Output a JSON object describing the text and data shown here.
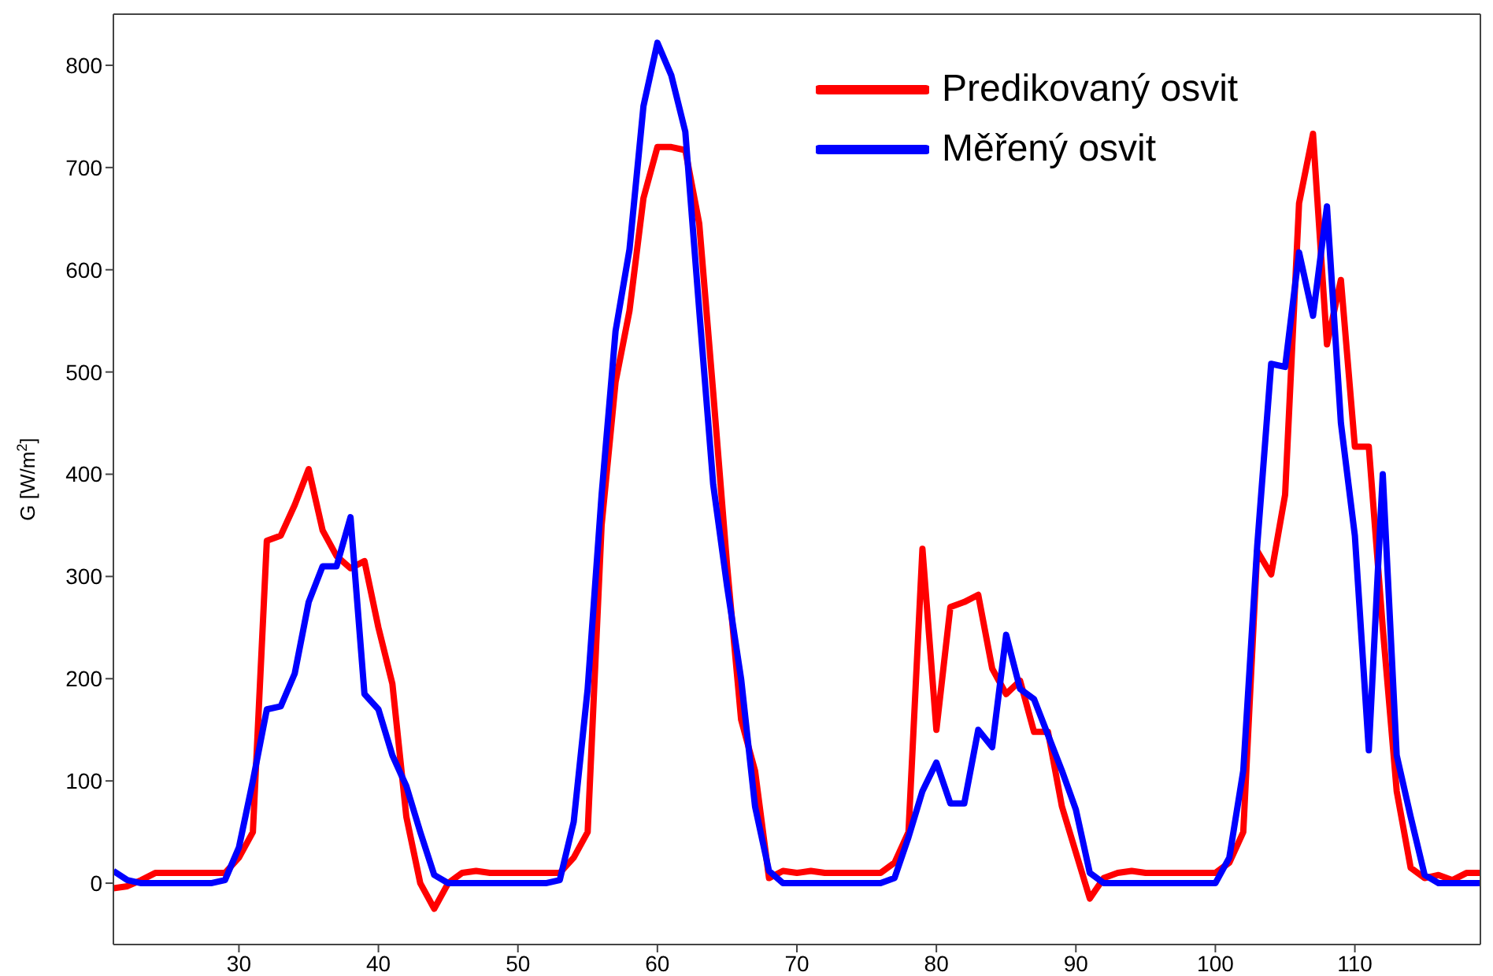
{
  "chart_data": {
    "type": "line",
    "ylabel": "G [W/m$^{2}$]",
    "xlim": [
      21,
      119
    ],
    "xticks": [
      30,
      40,
      50,
      60,
      70,
      80,
      90,
      100,
      110
    ],
    "ylim": [
      -60,
      850
    ],
    "yticks": [
      0,
      100,
      200,
      300,
      400,
      500,
      600,
      700,
      800
    ],
    "grid": false,
    "legend": "top right",
    "marker": "none",
    "line_style": "solid",
    "x": [
      21,
      22,
      23,
      24,
      25,
      26,
      27,
      28,
      29,
      30,
      31,
      32,
      33,
      34,
      35,
      36,
      37,
      38,
      39,
      40,
      41,
      42,
      43,
      44,
      45,
      46,
      47,
      48,
      49,
      50,
      51,
      52,
      53,
      54,
      55,
      56,
      57,
      58,
      59,
      60,
      61,
      62,
      63,
      64,
      65,
      66,
      67,
      68,
      69,
      70,
      71,
      72,
      73,
      74,
      75,
      76,
      77,
      78,
      79,
      80,
      81,
      82,
      83,
      84,
      85,
      86,
      87,
      88,
      89,
      90,
      91,
      92,
      93,
      94,
      95,
      96,
      97,
      98,
      99,
      100,
      101,
      102,
      103,
      104,
      105,
      106,
      107,
      108,
      109,
      110,
      111,
      112,
      113,
      114,
      115,
      116,
      117,
      118,
      119
    ],
    "series": [
      {
        "name": "Predikovaný osvit",
        "color": "#ff0000",
        "values": [
          -5,
          -3,
          3,
          10,
          10,
          10,
          10,
          10,
          10,
          25,
          50,
          335,
          340,
          370,
          405,
          345,
          320,
          308,
          315,
          250,
          195,
          65,
          0,
          -25,
          0,
          10,
          12,
          10,
          10,
          10,
          10,
          10,
          10,
          25,
          50,
          350,
          490,
          560,
          670,
          720,
          720,
          717,
          645,
          480,
          310,
          160,
          110,
          5,
          12,
          10,
          12,
          10,
          10,
          10,
          10,
          10,
          20,
          50,
          327,
          150,
          270,
          275,
          282,
          210,
          185,
          198,
          148,
          148,
          75,
          30,
          -15,
          5,
          10,
          12,
          10,
          10,
          10,
          10,
          10,
          10,
          20,
          50,
          325,
          302,
          380,
          665,
          733,
          527,
          590,
          427,
          427,
          250,
          90,
          15,
          5,
          8,
          3,
          10,
          10
        ]
      },
      {
        "name": "Měřený osvit",
        "color": "#0000ff",
        "values": [
          12,
          3,
          0,
          0,
          0,
          0,
          0,
          0,
          3,
          35,
          100,
          170,
          173,
          205,
          275,
          310,
          310,
          358,
          185,
          170,
          125,
          95,
          50,
          8,
          0,
          0,
          0,
          0,
          0,
          0,
          0,
          0,
          3,
          60,
          190,
          380,
          540,
          620,
          760,
          822,
          790,
          735,
          560,
          390,
          290,
          200,
          75,
          12,
          0,
          0,
          0,
          0,
          0,
          0,
          0,
          0,
          5,
          45,
          90,
          118,
          78,
          78,
          150,
          133,
          243,
          190,
          180,
          145,
          110,
          72,
          10,
          0,
          0,
          0,
          0,
          0,
          0,
          0,
          0,
          0,
          25,
          110,
          330,
          508,
          505,
          617,
          555,
          662,
          450,
          340,
          130,
          400,
          125,
          65,
          8,
          0,
          0,
          0,
          0
        ]
      }
    ]
  }
}
